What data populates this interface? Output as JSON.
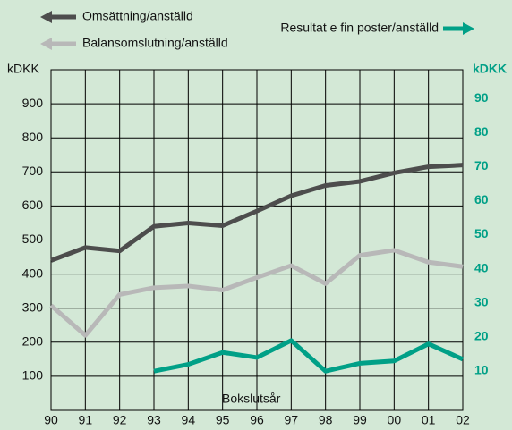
{
  "chart_data": {
    "type": "line",
    "y_label": "kDKK",
    "y2_label": "kDKK",
    "x_label": "Bokslutsår",
    "categories": [
      "90",
      "91",
      "92",
      "93",
      "94",
      "95",
      "96",
      "97",
      "98",
      "99",
      "00",
      "01",
      "02"
    ],
    "series": [
      {
        "name": "Omsättning/anställd",
        "color": "#4d4d4d",
        "values": [
          440,
          478,
          468,
          540,
          550,
          542,
          585,
          630,
          660,
          672,
          697,
          715,
          720
        ]
      },
      {
        "name": "Balansomslutning/anställd",
        "color": "#b8b8b8",
        "values": [
          308,
          220,
          340,
          360,
          365,
          353,
          390,
          425,
          372,
          455,
          470,
          435,
          422
        ]
      },
      {
        "name": "Resultat e fin poster/anställd",
        "color": "#00a087",
        "axis": "y2",
        "values": [
          null,
          null,
          null,
          11.5,
          13.5,
          17,
          15.5,
          20.5,
          11.5,
          13.8,
          14.5,
          19.5,
          15
        ]
      }
    ],
    "ylim": [
      0,
      1000
    ],
    "yticks": [
      100,
      200,
      300,
      400,
      500,
      600,
      700,
      800,
      900
    ],
    "y2lim": [
      0,
      100
    ],
    "y2ticks": [
      10,
      20,
      30,
      40,
      50,
      60,
      70,
      80,
      90
    ],
    "grid": true
  }
}
